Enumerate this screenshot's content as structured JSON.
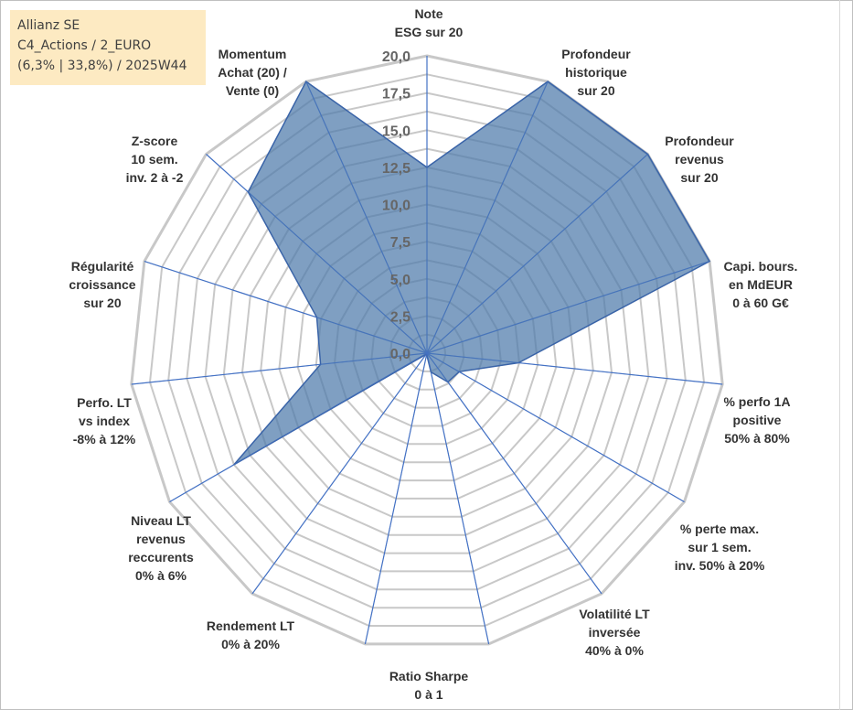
{
  "info": {
    "company": "Allianz SE",
    "category": "C4_Actions / 2_EURO",
    "details": "(6,3% | 33,8%) / 2025W44"
  },
  "chart_data": {
    "type": "radar",
    "title": "",
    "range": [
      0,
      20
    ],
    "ticks": [
      "0,0",
      "2,5",
      "5,0",
      "7,5",
      "10,0",
      "12,5",
      "15,0",
      "17,5",
      "20,0"
    ],
    "tick_values": [
      0,
      2.5,
      5,
      7.5,
      10,
      12.5,
      15,
      17.5,
      20
    ],
    "grid_levels": 16,
    "axes": [
      {
        "label": [
          "Note",
          "ESG sur 20"
        ],
        "value": 12.5
      },
      {
        "label": [
          "Profondeur",
          "historique",
          "sur 20"
        ],
        "value": 20
      },
      {
        "label": [
          "Profondeur",
          "revenus",
          "sur 20"
        ],
        "value": 20
      },
      {
        "label": [
          "Capi. bours.",
          "en MdEUR",
          "0 à 60 G€"
        ],
        "value": 20
      },
      {
        "label": [
          "% perfo 1A",
          "positive",
          "50% à 80%"
        ],
        "value": 6.2
      },
      {
        "label": [
          "% perte max.",
          "sur 1 sem.",
          "inv. 50% à 20%"
        ],
        "value": 2.5
      },
      {
        "label": [
          "Volatilité LT",
          "inversée",
          "40% à 0%"
        ],
        "value": 2.4
      },
      {
        "label": [
          "Ratio Sharpe",
          "0 à 1"
        ],
        "value": 1.3
      },
      {
        "label": [
          "Rendement LT",
          "0% à 20%"
        ],
        "value": 0.1
      },
      {
        "label": [
          "Niveau LT",
          "revenus",
          "reccurents",
          "0% à 6%"
        ],
        "value": 0.1
      },
      {
        "label": [
          "Perfo. LT",
          "vs index",
          "-8% à 12%"
        ],
        "value": 15
      },
      {
        "label": [
          "Régularité",
          "croissance",
          "sur 20"
        ],
        "value": 7.2
      },
      {
        "label": [
          "Z-score",
          "10 sem.",
          "inv. 2 à -2"
        ],
        "value": 7.8
      },
      {
        "label": [
          "Momentum",
          "Achat (20) /",
          "Vente (0)"
        ],
        "value": 16.2
      },
      {
        "label": [
          "Momentum",
          "Achat (20) /",
          "Vente (0)"
        ],
        "value": 20
      }
    ],
    "series": [
      {
        "name": "",
        "color": "#4e7aab",
        "values": [
          12.5,
          20,
          20,
          20,
          6.2,
          2.5,
          2.4,
          1.3,
          0.1,
          0.1,
          15,
          7.2,
          7.8,
          16.2,
          20
        ]
      }
    ],
    "colors": {
      "grid": "#c8c8c8",
      "spoke": "#4472c4",
      "fill": "#4e7aab",
      "stroke": "#3a64a8"
    }
  }
}
